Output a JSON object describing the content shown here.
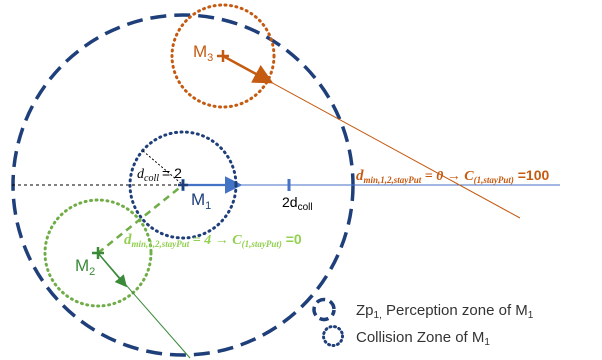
{
  "colors": {
    "navy": "#1f3f7a",
    "orange": "#c55a11",
    "green": "#70ad47",
    "dark_green": "#3a8a3a",
    "blue_axis": "#4472c4",
    "black": "#000000"
  },
  "labels": {
    "m1": {
      "main": "M",
      "sub": "1"
    },
    "m2": {
      "main": "M",
      "sub": "2"
    },
    "m3": {
      "main": "M",
      "sub": "3"
    },
    "d_coll": {
      "main": "d",
      "sub": "coll",
      "eq": "= 2"
    },
    "two_d_coll": {
      "main": "2d",
      "sub": "coll"
    },
    "orange_eq": {
      "d": "d",
      "sub": "min,1,2,stayPut",
      "rhs": " = 0 → ",
      "c": "C",
      "csub": "(1,stayPut)",
      "val": " =100"
    },
    "green_eq": {
      "d": "d",
      "sub": "min,1,2,stayPut",
      "rhs": " = 4 → ",
      "c": "C",
      "csub": "(1,stayPut)",
      "val": " =0"
    }
  },
  "legend": {
    "perception": {
      "prefix": "Zp",
      "prefix_sub": "1,",
      "text": " Perception zone of M",
      "text_sub": "1"
    },
    "collision": {
      "text": "Collision Zone of M",
      "text_sub": "1"
    }
  }
}
